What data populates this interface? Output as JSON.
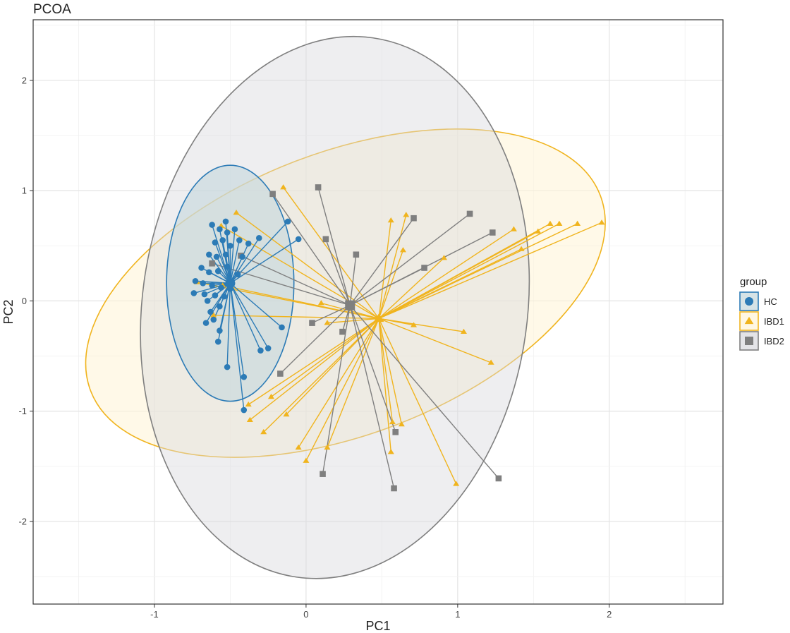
{
  "chart_data": {
    "type": "scatter",
    "title": "PCOA",
    "xlabel": "PC1",
    "ylabel": "PC2",
    "xlim": [
      -1.8,
      2.75
    ],
    "ylim": [
      -2.75,
      2.55
    ],
    "xticks": [
      -1,
      0,
      1,
      2
    ],
    "xtick_labels": [
      "-1",
      "0",
      "1",
      "2"
    ],
    "yticks": [
      -2,
      -1,
      0,
      1,
      2
    ],
    "ytick_labels": [
      "-2",
      "-1",
      "0",
      "1",
      "2"
    ],
    "grid": true,
    "legend": {
      "title": "group",
      "position": "right"
    },
    "series": [
      {
        "name": "HC",
        "color": "#2c7bb6",
        "marker": "circle",
        "centroid": [
          -0.5,
          0.16
        ],
        "ellipse": {
          "center": [
            -0.5,
            0.16
          ],
          "rx": 0.42,
          "ry": 1.07,
          "angle": 0
        },
        "points": [
          [
            -0.62,
            0.69
          ],
          [
            -0.57,
            0.65
          ],
          [
            -0.53,
            0.72
          ],
          [
            -0.47,
            0.65
          ],
          [
            -0.52,
            0.62
          ],
          [
            -0.6,
            0.53
          ],
          [
            -0.55,
            0.55
          ],
          [
            -0.5,
            0.5
          ],
          [
            -0.44,
            0.55
          ],
          [
            -0.38,
            0.52
          ],
          [
            -0.31,
            0.57
          ],
          [
            -0.12,
            0.72
          ],
          [
            -0.05,
            0.56
          ],
          [
            -0.64,
            0.42
          ],
          [
            -0.59,
            0.4
          ],
          [
            -0.53,
            0.42
          ],
          [
            -0.42,
            0.4
          ],
          [
            -0.69,
            0.3
          ],
          [
            -0.64,
            0.26
          ],
          [
            -0.58,
            0.27
          ],
          [
            -0.52,
            0.31
          ],
          [
            -0.45,
            0.24
          ],
          [
            -0.73,
            0.18
          ],
          [
            -0.68,
            0.16
          ],
          [
            -0.62,
            0.14
          ],
          [
            -0.56,
            0.12
          ],
          [
            -0.5,
            0.11
          ],
          [
            -0.74,
            0.07
          ],
          [
            -0.67,
            0.06
          ],
          [
            -0.6,
            0.05
          ],
          [
            -0.54,
            0.04
          ],
          [
            -0.65,
            0.0
          ],
          [
            -0.57,
            -0.05
          ],
          [
            -0.63,
            -0.1
          ],
          [
            -0.61,
            -0.17
          ],
          [
            -0.66,
            -0.2
          ],
          [
            -0.57,
            -0.27
          ],
          [
            -0.58,
            -0.37
          ],
          [
            -0.16,
            -0.24
          ],
          [
            -0.25,
            -0.43
          ],
          [
            -0.3,
            -0.45
          ],
          [
            -0.52,
            -0.6
          ],
          [
            -0.41,
            -0.69
          ],
          [
            -0.41,
            -0.99
          ]
        ]
      },
      {
        "name": "IBD1",
        "color": "#f0b41e",
        "marker": "triangle",
        "centroid": [
          0.48,
          -0.16
        ],
        "ellipse": {
          "center": [
            0.26,
            0.07
          ],
          "rx": 1.8,
          "ry": 1.28,
          "angle": 21
        },
        "points": [
          [
            -0.15,
            1.03
          ],
          [
            -0.46,
            0.8
          ],
          [
            -0.56,
            0.68
          ],
          [
            -0.72,
            0.17
          ],
          [
            -0.55,
            0.14
          ],
          [
            -0.61,
            -0.13
          ],
          [
            0.1,
            -0.02
          ],
          [
            0.14,
            -0.2
          ],
          [
            0.56,
            0.73
          ],
          [
            0.66,
            0.78
          ],
          [
            0.64,
            0.46
          ],
          [
            0.91,
            0.39
          ],
          [
            1.37,
            0.65
          ],
          [
            1.53,
            0.63
          ],
          [
            1.61,
            0.7
          ],
          [
            1.67,
            0.7
          ],
          [
            1.79,
            0.7
          ],
          [
            1.95,
            0.71
          ],
          [
            1.42,
            0.47
          ],
          [
            0.71,
            -0.22
          ],
          [
            1.04,
            -0.28
          ],
          [
            1.22,
            -0.56
          ],
          [
            -0.38,
            -0.94
          ],
          [
            -0.23,
            -0.87
          ],
          [
            -0.37,
            -1.08
          ],
          [
            -0.28,
            -1.19
          ],
          [
            -0.13,
            -1.03
          ],
          [
            -0.05,
            -1.33
          ],
          [
            0.0,
            -1.45
          ],
          [
            0.14,
            -1.33
          ],
          [
            0.57,
            -1.1
          ],
          [
            0.63,
            -1.12
          ],
          [
            0.56,
            -1.37
          ],
          [
            0.99,
            -1.66
          ]
        ]
      },
      {
        "name": "IBD2",
        "color": "#7f7f7f",
        "marker": "square",
        "centroid": [
          0.29,
          -0.04
        ],
        "ellipse": {
          "center": [
            0.19,
            -0.06
          ],
          "rx": 1.27,
          "ry": 2.47,
          "angle": -8
        },
        "points": [
          [
            -0.22,
            0.97
          ],
          [
            0.08,
            1.03
          ],
          [
            0.13,
            0.56
          ],
          [
            -0.62,
            0.34
          ],
          [
            -0.43,
            0.41
          ],
          [
            0.33,
            0.42
          ],
          [
            0.71,
            0.75
          ],
          [
            1.08,
            0.79
          ],
          [
            1.23,
            0.62
          ],
          [
            0.78,
            0.3
          ],
          [
            0.04,
            -0.2
          ],
          [
            0.24,
            -0.28
          ],
          [
            -0.17,
            -0.66
          ],
          [
            0.59,
            -1.19
          ],
          [
            0.11,
            -1.57
          ],
          [
            0.58,
            -1.7
          ],
          [
            1.27,
            -1.61
          ]
        ]
      }
    ]
  }
}
